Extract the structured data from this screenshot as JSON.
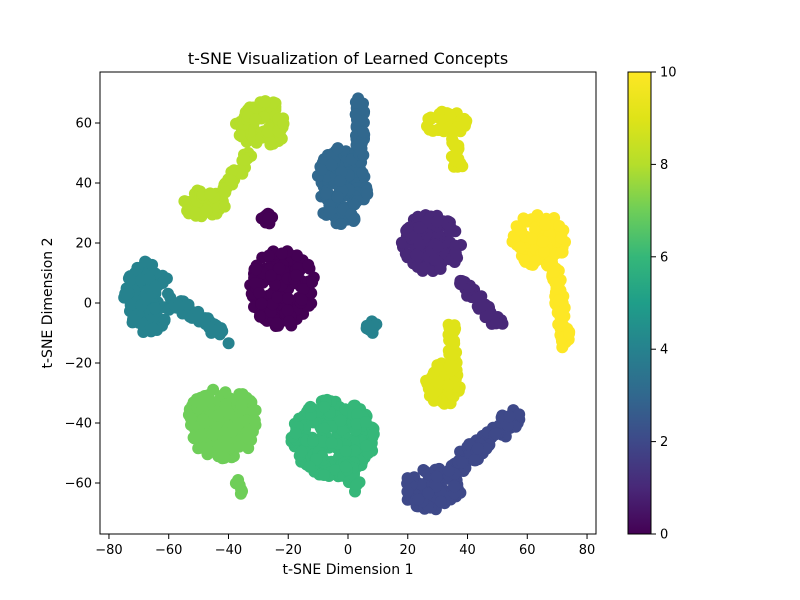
{
  "chart_data": {
    "type": "scatter",
    "title": "t-SNE Visualization of Learned Concepts",
    "xlabel": "t-SNE Dimension 1",
    "ylabel": "t-SNE Dimension 2",
    "xlim": [
      -83,
      83
    ],
    "ylim": [
      -77,
      77
    ],
    "xticks": [
      -80,
      -60,
      -40,
      -20,
      0,
      20,
      40,
      60,
      80
    ],
    "yticks": [
      -60,
      -40,
      -20,
      0,
      20,
      40,
      60
    ],
    "grid": false,
    "colormap": "viridis",
    "colorbar": {
      "min": 0,
      "max": 10,
      "ticks": [
        0,
        2,
        4,
        6,
        8,
        10
      ]
    },
    "clusters": [
      {
        "value": 0,
        "blobs": [
          {
            "cx": -22,
            "cy": 5,
            "rx": 11,
            "ry": 13
          },
          {
            "cx": -27,
            "cy": 28,
            "rx": 2,
            "ry": 2
          }
        ]
      },
      {
        "value": 1,
        "blobs": [
          {
            "cx": 28,
            "cy": 20,
            "rx": 10,
            "ry": 10
          }
        ],
        "tails": [
          {
            "x1": 38,
            "y1": 7,
            "x2": 51,
            "y2": -7,
            "w": 3
          }
        ]
      },
      {
        "value": 2,
        "blobs": [
          {
            "cx": 28,
            "cy": -62,
            "rx": 10,
            "ry": 7
          }
        ],
        "tails": [
          {
            "x1": 35,
            "y1": -56,
            "x2": 57,
            "y2": -37,
            "w": 5
          }
        ]
      },
      {
        "value": 3,
        "blobs": [
          {
            "cx": -2,
            "cy": 39,
            "rx": 9,
            "ry": 13
          }
        ],
        "tails": [
          {
            "x1": 4,
            "y1": 50,
            "x2": 4,
            "y2": 68,
            "w": 3
          }
        ]
      },
      {
        "value": 4,
        "blobs": [
          {
            "cx": -67,
            "cy": 2,
            "rx": 8,
            "ry": 12
          },
          {
            "cx": 8,
            "cy": -8,
            "rx": 2,
            "ry": 2
          }
        ],
        "tails": [
          {
            "x1": -57,
            "y1": 0,
            "x2": -40,
            "y2": -12,
            "w": 3
          }
        ]
      },
      {
        "value": 6,
        "blobs": [
          {
            "cx": -5,
            "cy": -45,
            "rx": 14,
            "ry": 13
          }
        ],
        "tails": [
          {
            "x1": 0,
            "y1": -55,
            "x2": 3,
            "y2": -62,
            "w": 3
          }
        ]
      },
      {
        "value": 7,
        "blobs": [
          {
            "cx": -42,
            "cy": -40,
            "rx": 12,
            "ry": 12
          }
        ],
        "tails": [
          {
            "x1": -37,
            "y1": -59,
            "x2": -36,
            "y2": -63,
            "w": 2
          }
        ]
      },
      {
        "value": 8,
        "blobs": [
          {
            "cx": -29,
            "cy": 60,
            "rx": 9,
            "ry": 8
          },
          {
            "cx": -48,
            "cy": 33,
            "rx": 7,
            "ry": 5
          }
        ],
        "tails": [
          {
            "x1": -33,
            "y1": 50,
            "x2": -42,
            "y2": 37,
            "w": 3
          }
        ]
      },
      {
        "value": 9,
        "blobs": [
          {
            "cx": 33,
            "cy": 60,
            "rx": 7,
            "ry": 4
          },
          {
            "cx": 32,
            "cy": -27,
            "rx": 6,
            "ry": 7
          }
        ],
        "tails": [
          {
            "x1": 35,
            "y1": 55,
            "x2": 37,
            "y2": 46,
            "w": 3
          },
          {
            "x1": 35,
            "y1": -22,
            "x2": 35,
            "y2": -6,
            "w": 3
          }
        ]
      },
      {
        "value": 10,
        "blobs": [
          {
            "cx": 64,
            "cy": 21,
            "rx": 9,
            "ry": 9
          }
        ],
        "tails": [
          {
            "x1": 69,
            "y1": 12,
            "x2": 73,
            "y2": -14,
            "w": 3
          }
        ]
      }
    ]
  }
}
